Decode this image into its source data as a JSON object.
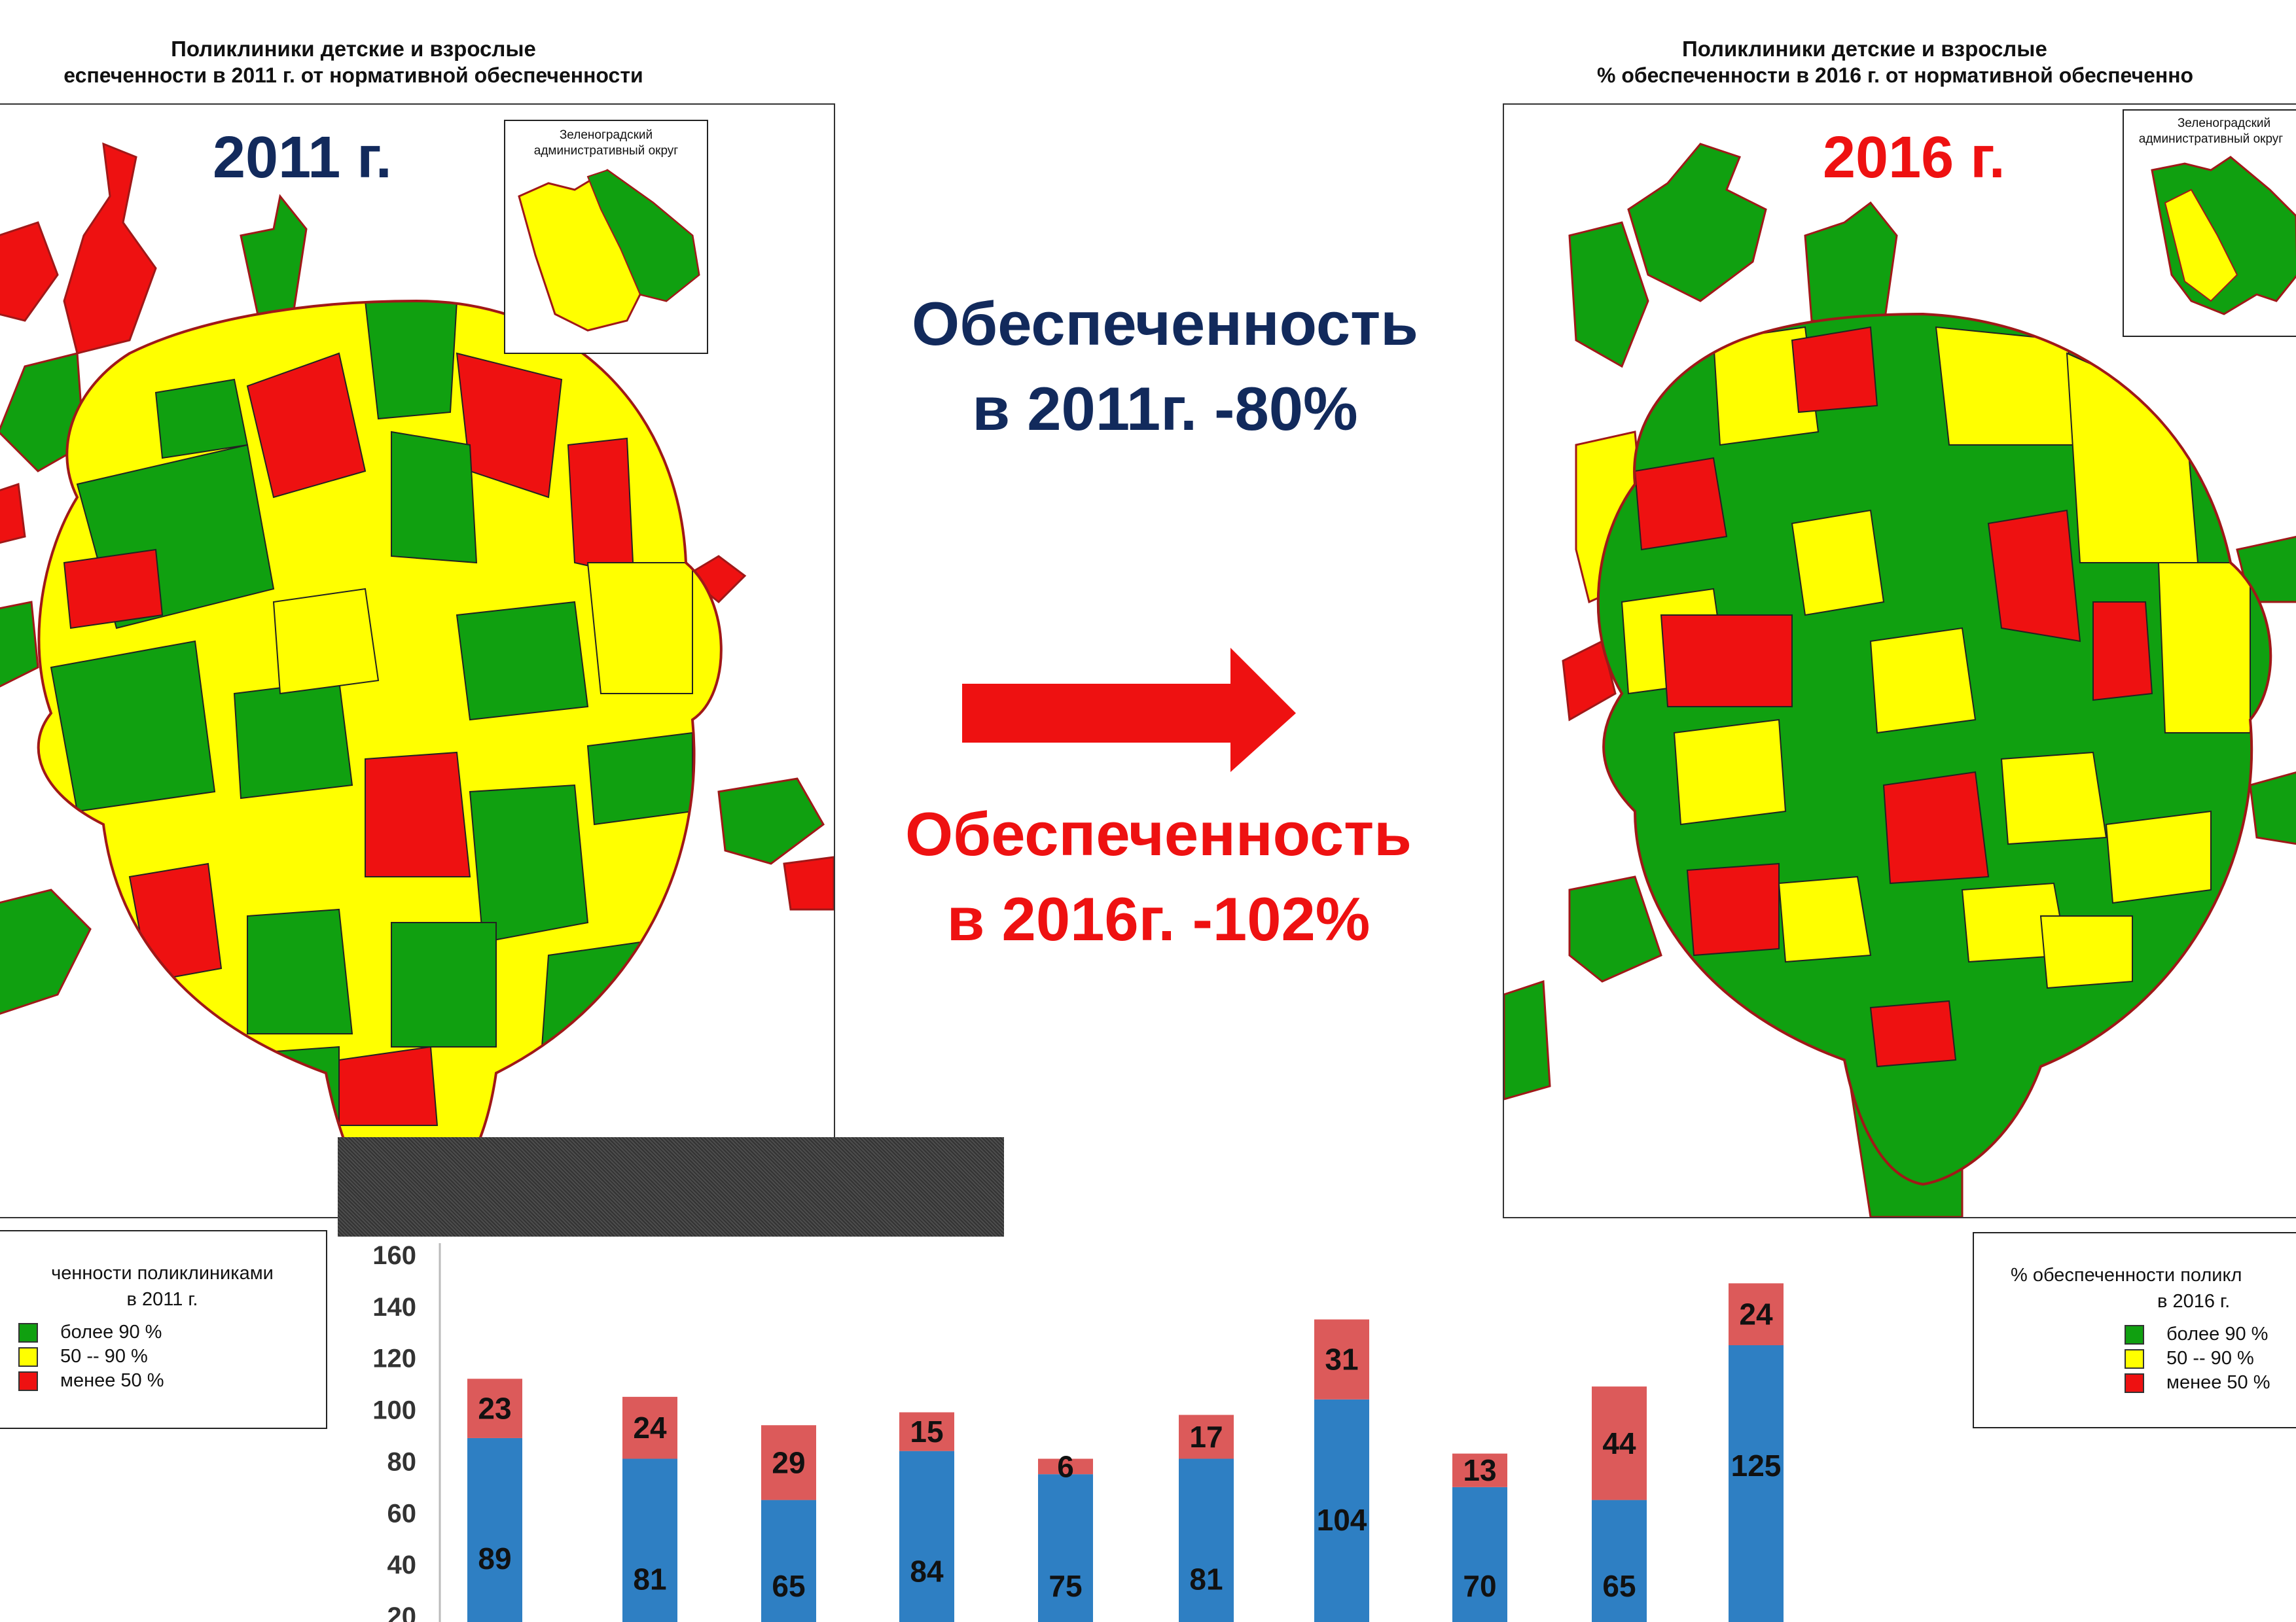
{
  "left_map": {
    "title_line1": "Поликлиники детские и взрослые",
    "title_line2": "еспеченности в 2011 г. от нормативной обеспеченности",
    "year_label": "2011 г.",
    "inset_label_line1": "Зеленоградский",
    "inset_label_line2": "административный округ"
  },
  "right_map": {
    "title_line1": "Поликлиники детские и взрослые",
    "title_line2": "% обеспеченности в 2016 г. от нормативной обеспеченно",
    "year_label": "2016 г.",
    "inset_label_line1": "Зеленоградский",
    "inset_label_line2": "административный округ"
  },
  "center": {
    "stat_2011_line1": "Обеспеченность",
    "stat_2011_line2": "в 2011г. -80%",
    "stat_2016_line1": "Обеспеченность",
    "stat_2016_line2": "в 2016г. -102%"
  },
  "legend_left": {
    "title_line1": "ченности поликлиниками",
    "title_line2": "в 2011 г.",
    "items": [
      {
        "label": "более 90 %",
        "color": "#10a010"
      },
      {
        "label": "50 -- 90 %",
        "color": "#ffff00"
      },
      {
        "label": "менее 50 %",
        "color": "#ee1111"
      }
    ]
  },
  "legend_right": {
    "title_line1": "% обеспеченности поликл",
    "title_line2": "в 2016 г.",
    "items": [
      {
        "label": "более 90 %",
        "color": "#10a010"
      },
      {
        "label": "50 -- 90 %",
        "color": "#ffff00"
      },
      {
        "label": "менее 50 %",
        "color": "#ee1111"
      }
    ]
  },
  "colors": {
    "green": "#10a010",
    "yellow": "#ffff00",
    "red": "#ee1111",
    "navy": "#122a5c",
    "stat_red": "#ee1111",
    "bar_blue": "#2e7fc3",
    "bar_red": "#dc5a5a"
  },
  "chart_data": {
    "type": "bar",
    "stacked": true,
    "categories": [
      "",
      "",
      "",
      "",
      "",
      "",
      "",
      "",
      "",
      ""
    ],
    "series": [
      {
        "values": [
          89,
          81,
          65,
          84,
          75,
          81,
          104,
          70,
          65,
          125
        ]
      },
      {
        "values": [
          23,
          24,
          29,
          15,
          6,
          17,
          31,
          13,
          44,
          24
        ]
      }
    ],
    "y_ticks": [
      160,
      140,
      120,
      100,
      80,
      60,
      40,
      20
    ],
    "ylim": [
      0,
      160
    ],
    "grid": false,
    "title": "",
    "xlabel": "",
    "ylabel": ""
  }
}
